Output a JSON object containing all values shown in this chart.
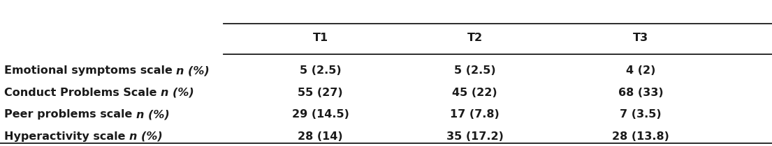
{
  "col_headers": [
    "T1",
    "T2",
    "T3"
  ],
  "row_labels_plain": [
    "Emotional symptoms scale ",
    "Conduct Problems Scale ",
    "Peer problems scale ",
    "Hyperactivity scale "
  ],
  "row_labels_italic": [
    "n (%)",
    "n (%)",
    "n (%)",
    "n (%)"
  ],
  "cell_values": [
    [
      "5 (2.5)",
      "5 (2.5)",
      "4 (2)"
    ],
    [
      "55 (27)",
      "45 (22)",
      "68 (33)"
    ],
    [
      "29 (14.5)",
      "17 (7.8)",
      "7 (3.5)"
    ],
    [
      "28 (14)",
      "35 (17.2)",
      "28 (13.8)"
    ]
  ],
  "background_color": "#ffffff",
  "text_color": "#1a1a1a",
  "header_fontsize": 11.5,
  "body_fontsize": 11.5,
  "figwidth": 11.05,
  "figheight": 2.1,
  "dpi": 100
}
